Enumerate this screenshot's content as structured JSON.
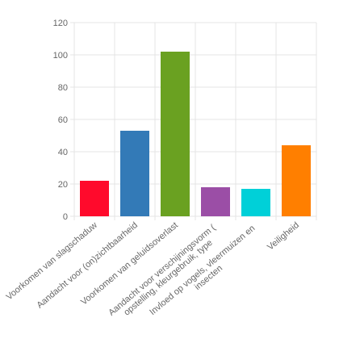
{
  "chart_data": {
    "type": "bar",
    "categories": [
      "Voorkomen van slagschaduw",
      "Aandacht voor (on)zichtbaarheid",
      "Voorkomen van geluidsoverlast",
      "Aandacht voor verschijningsvorm ( opstelling, kleurgebruik, type",
      "Invloed op vogels, vleermuizen en insecten",
      "Veiligheid"
    ],
    "values": [
      22,
      53,
      102,
      18,
      17,
      44
    ],
    "colors": [
      "#ff0a2c",
      "#337ab7",
      "#6aa121",
      "#9b4ea6",
      "#00d0d8",
      "#ff7f00"
    ],
    "ylim": [
      0,
      120
    ],
    "yticks": [
      0,
      20,
      40,
      60,
      80,
      100,
      120
    ],
    "grid": true
  }
}
